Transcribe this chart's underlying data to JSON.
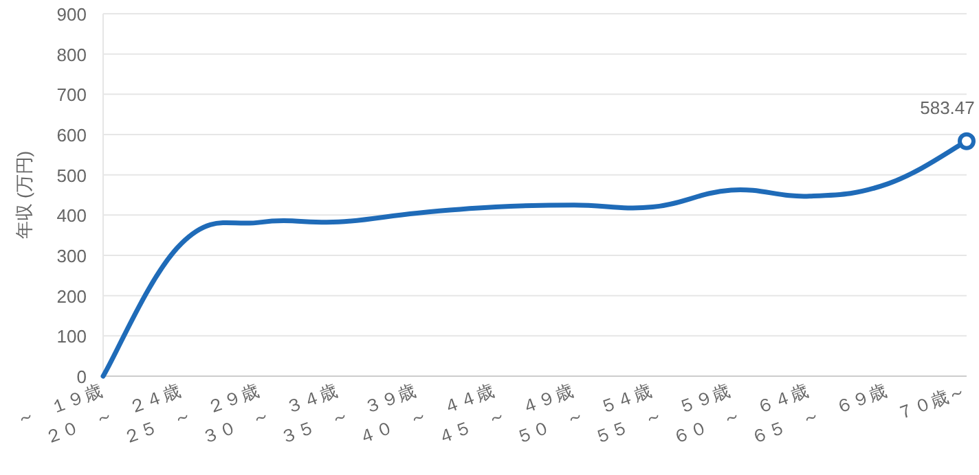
{
  "chart_data": {
    "type": "line",
    "ylabel": "年収 (万円)",
    "categories": [
      "～　１９歳",
      "２０　～　２４歳",
      "２５　～　２９歳",
      "３０　～　３４歳",
      "３５　～　３９歳",
      "４０　～　４４歳",
      "４５　～　４９歳",
      "５０　～　５４歳",
      "５５　～　５９歳",
      "６０　～　６４歳",
      "６５　～　６９歳",
      "７０歳～"
    ],
    "series": [
      {
        "color": "#1f6bb8",
        "values": [
          0,
          330,
          382,
          383,
          405,
          420,
          425,
          420,
          462,
          447,
          478,
          583.47
        ],
        "value_labels": [
          null,
          null,
          null,
          null,
          null,
          null,
          null,
          null,
          null,
          null,
          null,
          "583.47"
        ]
      }
    ],
    "ylim": [
      0,
      900
    ],
    "yticks": [
      0,
      100,
      200,
      300,
      400,
      500,
      600,
      700,
      800,
      900
    ],
    "grid": "y"
  }
}
